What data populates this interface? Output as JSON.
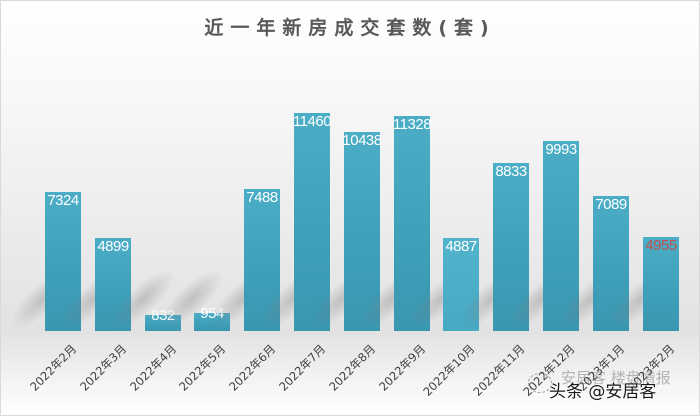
{
  "chart_data": {
    "type": "bar",
    "title": "近一年新房成交套数(套)",
    "xlabel": "",
    "ylabel": "",
    "categories": [
      "2022年2月",
      "2022年3月",
      "2022年4月",
      "2022年5月",
      "2022年6月",
      "2022年7月",
      "2022年8月",
      "2022年9月",
      "2022年10月",
      "2022年11月",
      "2022年12月",
      "2023年1月",
      "2023年2月"
    ],
    "values": [
      7324,
      4899,
      832,
      954,
      7488,
      11460,
      10438,
      11328,
      4887,
      8833,
      9993,
      7089,
      4955
    ],
    "value_labels": [
      "7324",
      "4899",
      "832",
      "954",
      "7488",
      "11460",
      "10438",
      "11328",
      "4887",
      "8833",
      "9993",
      "7089",
      "4955"
    ],
    "ylim": [
      0,
      11460
    ],
    "grid": false,
    "legend": null,
    "data_labels": "inside-top",
    "colors": {
      "bar": "#42a3bd",
      "bar_highlight": "#4fb0c9",
      "label": "#ffffff",
      "label_highlight": "#c0504d",
      "title": "#595959",
      "axis_text": "#404040"
    }
  },
  "watermark": {
    "text": "头条 @安居客",
    "ghost_text": "安居客 楼盘情报"
  }
}
